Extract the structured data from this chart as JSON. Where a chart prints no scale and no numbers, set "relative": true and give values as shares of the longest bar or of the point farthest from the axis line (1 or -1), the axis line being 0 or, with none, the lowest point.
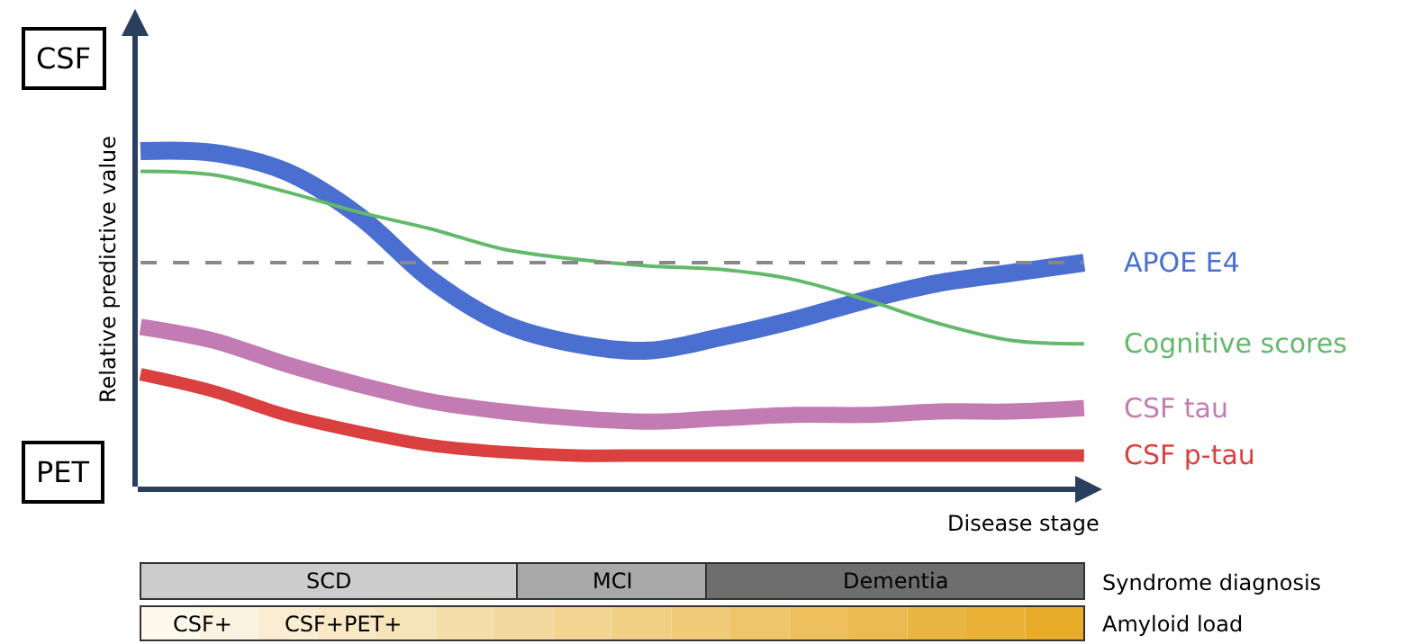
{
  "chart_data": {
    "type": "line",
    "relative": true,
    "xlabel": "Disease stage",
    "ylabel": "Relative predictive value",
    "categories": [
      null,
      null,
      null,
      null,
      null,
      null,
      null,
      null,
      null,
      null,
      null,
      null,
      null,
      null
    ],
    "series": [
      {
        "name": "APOE E4",
        "color": "#4a6fd0",
        "values": [
          1.0,
          0.995,
          0.94,
          0.81,
          0.62,
          0.49,
          0.43,
          0.41,
          0.45,
          0.5,
          0.56,
          0.61,
          0.64,
          0.67
        ]
      },
      {
        "name": "Cognitive scores",
        "color": "#63b96a",
        "values": [
          0.94,
          0.93,
          0.88,
          0.82,
          0.77,
          0.71,
          0.68,
          0.66,
          0.65,
          0.62,
          0.56,
          0.49,
          0.44,
          0.43
        ]
      },
      {
        "name": "CSF tau",
        "color": "#c27bb3",
        "values": [
          0.48,
          0.44,
          0.37,
          0.31,
          0.26,
          0.23,
          0.21,
          0.2,
          0.21,
          0.22,
          0.22,
          0.23,
          0.23,
          0.24
        ]
      },
      {
        "name": "CSF p-tau",
        "color": "#d9403f",
        "values": [
          0.34,
          0.29,
          0.22,
          0.17,
          0.13,
          0.11,
          0.1,
          0.1,
          0.1,
          0.1,
          0.1,
          0.1,
          0.1,
          0.1
        ]
      }
    ],
    "ref_lines": [
      {
        "axis": "y",
        "value": 0.67,
        "color": "#888888",
        "line_style": "dashed"
      }
    ],
    "annotations": [
      "CSF",
      "PET",
      "SCD",
      "MCI",
      "Dementia",
      "Syndrome diagnosis",
      "CSF+",
      "CSF+PET+",
      "Amyloid load"
    ],
    "legend": false,
    "tick_labels": false,
    "marker": "none",
    "line_style": "solid"
  }
}
